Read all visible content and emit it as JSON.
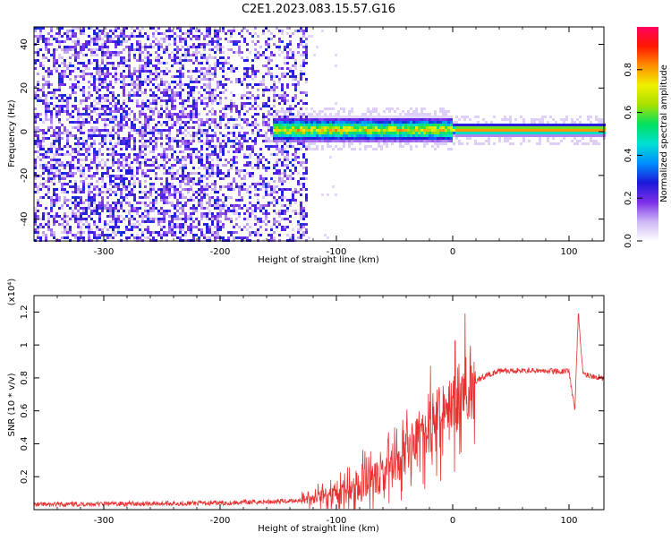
{
  "title": "C2E1.2023.083.15.57.G16",
  "chart_data": [
    {
      "type": "heatmap",
      "xlabel": "Height of straight line (km)",
      "ylabel": "Frequency (Hz)",
      "xlim": [
        -360,
        130
      ],
      "ylim": [
        -50,
        48
      ],
      "xticks": [
        -300,
        -200,
        -100,
        0,
        100
      ],
      "yticks": [
        -40,
        -20,
        0,
        20,
        40
      ],
      "colorbar": {
        "label": "Normalized spectral amplitude",
        "range": [
          0.0,
          1.0
        ],
        "ticks": [
          0.0,
          0.2,
          0.4,
          0.6,
          0.8
        ],
        "colors": [
          "#ffffff",
          "#cdb6f5",
          "#7a2ee8",
          "#1a1ad8",
          "#0090ff",
          "#00e0d0",
          "#00e060",
          "#a8e000",
          "#f0f000",
          "#ff9000",
          "#ff1800",
          "#ff0060"
        ]
      },
      "features": {
        "noise_region_x": [
          -360,
          -125
        ],
        "noise_amplitude": 0.25,
        "signal_band_center_hz": 1.5,
        "signal_start_x": -155,
        "signal_amplitude_range": [
          0.4,
          0.95
        ]
      }
    },
    {
      "type": "line",
      "xlabel": "Height of straight line (km)",
      "ylabel": "SNR (10 * v/v)",
      "y_multiplier": "(x10⁴)",
      "xlim": [
        -360,
        130
      ],
      "ylim": [
        0,
        1.3
      ],
      "xticks": [
        -300,
        -200,
        -100,
        0,
        100
      ],
      "yticks": [
        0.2,
        0.4,
        0.6,
        0.8,
        1.0,
        1.2
      ],
      "series": [
        {
          "color": "#e83030",
          "x": [
            -360,
            -300,
            -200,
            -150,
            -125,
            -100,
            -75,
            -50,
            -35,
            -25,
            -15,
            -5,
            0,
            10,
            20,
            30,
            40,
            60,
            80,
            100,
            105,
            108,
            112,
            130
          ],
          "values": [
            0.03,
            0.035,
            0.04,
            0.05,
            0.06,
            0.09,
            0.16,
            0.26,
            0.42,
            0.48,
            0.52,
            0.58,
            0.62,
            0.72,
            0.78,
            0.82,
            0.84,
            0.845,
            0.84,
            0.84,
            0.6,
            1.2,
            0.82,
            0.8
          ]
        }
      ]
    }
  ]
}
